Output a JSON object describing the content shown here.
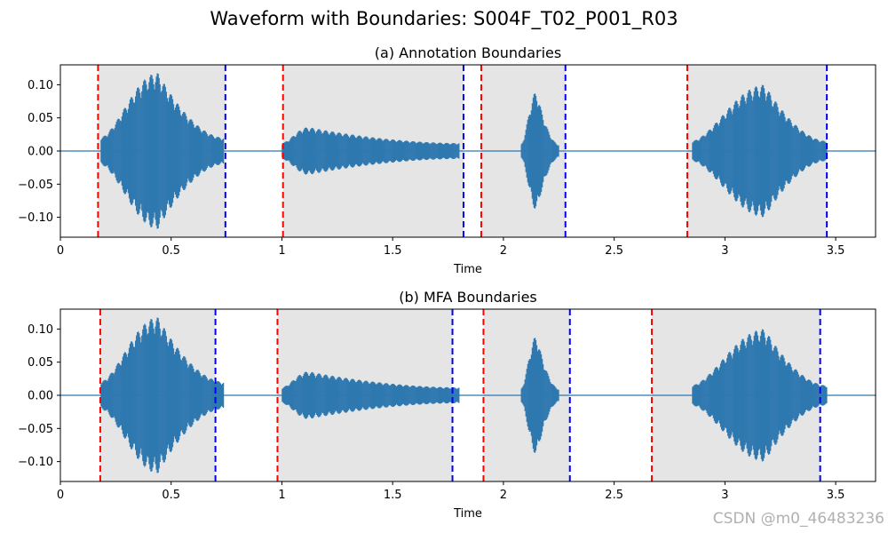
{
  "figure": {
    "title": "Waveform with Boundaries: S004F_T02_P001_R03"
  },
  "watermark": "CSDN @m0_46483236",
  "colors": {
    "waveform": "#2f78b0",
    "start_line": "#ff0000",
    "end_line": "#0000ff",
    "shade": "#e5e5e5",
    "axes": "#000000"
  },
  "chart_data": [
    {
      "type": "line",
      "title": "(a) Annotation Boundaries",
      "xlabel": "Time",
      "ylabel": "",
      "xlim": [
        0,
        3.68
      ],
      "ylim": [
        -0.13,
        0.13
      ],
      "xticks": [
        0,
        0.5,
        1,
        1.5,
        2,
        2.5,
        3,
        3.5
      ],
      "xtick_labels": [
        "0",
        "0.5",
        "1",
        "1.5",
        "2",
        "2.5",
        "3",
        "3.5"
      ],
      "yticks": [
        -0.1,
        -0.05,
        0.0,
        0.05,
        0.1
      ],
      "ytick_labels": [
        "−0.10",
        "−0.05",
        "0.00",
        "0.05",
        "0.10"
      ],
      "segments": [
        {
          "start": 0.17,
          "end": 0.745
        },
        {
          "start": 1.005,
          "end": 1.82
        },
        {
          "start": 1.9,
          "end": 2.28
        },
        {
          "start": 2.83,
          "end": 3.46
        }
      ],
      "envelope": [
        {
          "start": 0.18,
          "peak": 0.44,
          "end": 0.74,
          "amp": 0.118,
          "tail": 0.02
        },
        {
          "start": 1.0,
          "peak": 1.12,
          "end": 1.8,
          "amp": 0.036,
          "tail": 0.012
        },
        {
          "start": 2.08,
          "peak": 2.15,
          "end": 2.25,
          "amp": 0.09,
          "tail": 0.01
        },
        {
          "start": 2.85,
          "peak": 3.18,
          "end": 3.46,
          "amp": 0.1,
          "tail": 0.015
        }
      ]
    },
    {
      "type": "line",
      "title": "(b) MFA Boundaries",
      "xlabel": "Time",
      "ylabel": "",
      "xlim": [
        0,
        3.68
      ],
      "ylim": [
        -0.13,
        0.13
      ],
      "xticks": [
        0,
        0.5,
        1,
        1.5,
        2,
        2.5,
        3,
        3.5
      ],
      "xtick_labels": [
        "0",
        "0.5",
        "1",
        "1.5",
        "2",
        "2.5",
        "3",
        "3.5"
      ],
      "yticks": [
        -0.1,
        -0.05,
        0.0,
        0.05,
        0.1
      ],
      "ytick_labels": [
        "−0.10",
        "−0.05",
        "0.00",
        "0.05",
        "0.10"
      ],
      "segments": [
        {
          "start": 0.18,
          "end": 0.7
        },
        {
          "start": 0.98,
          "end": 1.77
        },
        {
          "start": 1.91,
          "end": 2.3
        },
        {
          "start": 2.67,
          "end": 3.43
        }
      ],
      "envelope": [
        {
          "start": 0.18,
          "peak": 0.44,
          "end": 0.74,
          "amp": 0.118,
          "tail": 0.02
        },
        {
          "start": 1.0,
          "peak": 1.12,
          "end": 1.8,
          "amp": 0.036,
          "tail": 0.012
        },
        {
          "start": 2.08,
          "peak": 2.15,
          "end": 2.25,
          "amp": 0.09,
          "tail": 0.01
        },
        {
          "start": 2.85,
          "peak": 3.18,
          "end": 3.46,
          "amp": 0.1,
          "tail": 0.015
        }
      ]
    }
  ]
}
